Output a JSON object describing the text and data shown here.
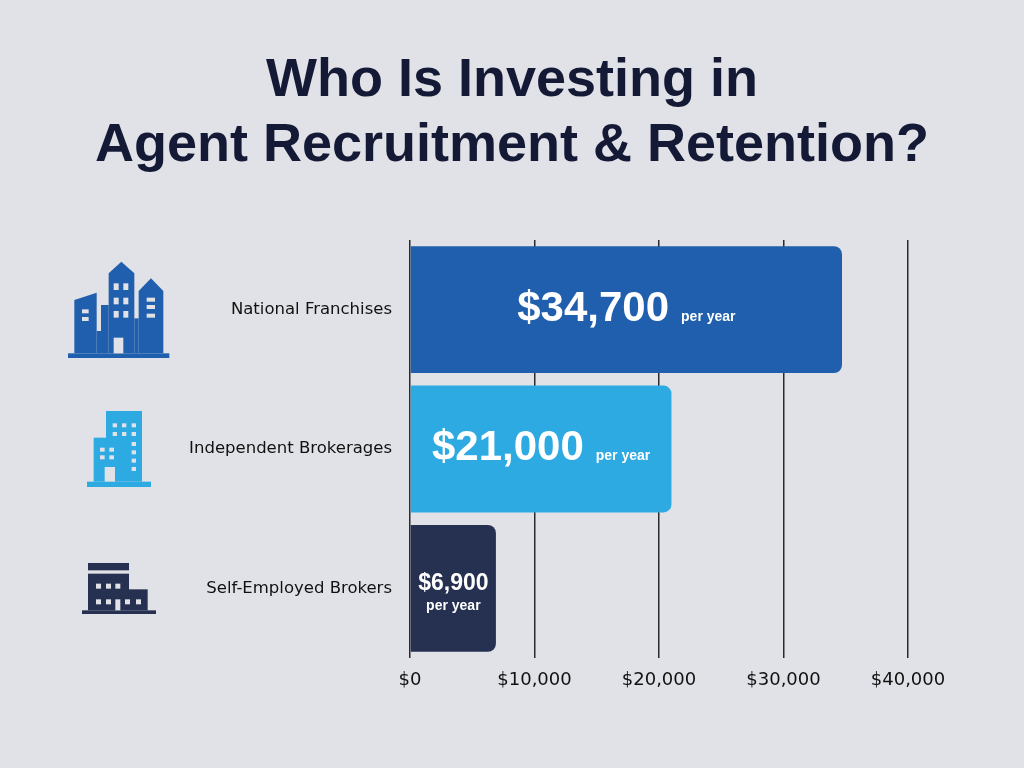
{
  "chart_data": {
    "type": "bar",
    "title": "Who Is Investing in\nAgent Recruitment & Retention?",
    "orientation": "horizontal",
    "categories": [
      "National Franchises",
      "Independent Brokerages",
      "Self-Employed Brokers"
    ],
    "values": [
      34700,
      21000,
      6900
    ],
    "colors": [
      "#1f5fad",
      "#2eaae3",
      "#263152"
    ],
    "value_labels": [
      "$34,700 per year",
      "$21,000 per year",
      "$6,900 per year"
    ],
    "xlim": [
      0,
      40000
    ],
    "xticks": [
      {
        "value": 0,
        "label": "$0"
      },
      {
        "value": 10000,
        "label": "$10,000"
      },
      {
        "value": 20000,
        "label": "$20,000"
      },
      {
        "value": 30000,
        "label": "$30,000"
      },
      {
        "value": 40000,
        "label": "$40,000"
      }
    ],
    "grid": "x"
  }
}
